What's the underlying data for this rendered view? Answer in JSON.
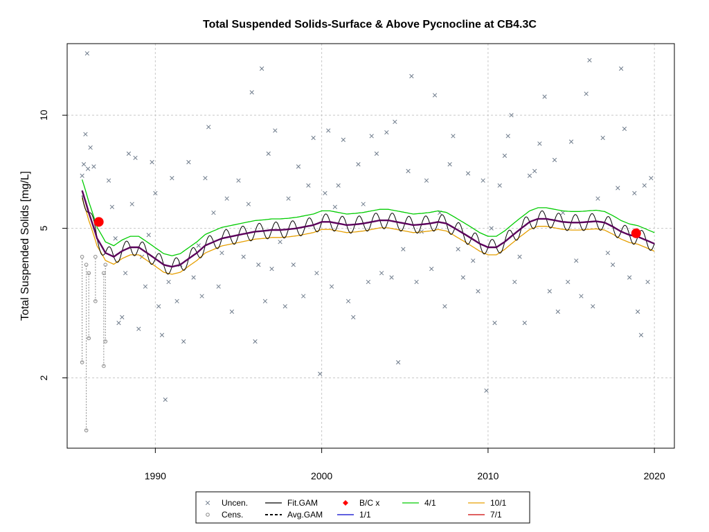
{
  "chart_data": {
    "type": "scatter",
    "title": "Total Suspended Solids-Surface & Above Pycnocline at CB4.3C",
    "xlabel": "",
    "ylabel": "Total Suspended Solids [mg/L]",
    "xlim": [
      1984.7,
      2021.2
    ],
    "ylim": [
      1.3,
      15.5
    ],
    "log_y": true,
    "grid": true,
    "x_ticks": [
      1990,
      2000,
      2010,
      2020
    ],
    "x_tick_labels": [
      "1990",
      "2000",
      "2010",
      "2020"
    ],
    "y_ticks": [
      2,
      5,
      10
    ],
    "y_tick_labels": [
      "2",
      "5",
      "10"
    ],
    "legend_position": "bottom",
    "legend": [
      {
        "key": "uncen",
        "label": "Uncen.",
        "symbol": "x",
        "color": "#6e7b8b"
      },
      {
        "key": "cens",
        "label": "Cens.",
        "symbol": "circle",
        "color": "#888888"
      },
      {
        "key": "fitgam",
        "label": "Fit.GAM",
        "symbol": "line",
        "color": "#000000"
      },
      {
        "key": "avggam",
        "label": "Avg.GAM",
        "symbol": "dashed-line",
        "color": "#000000"
      },
      {
        "key": "bc",
        "label": "B/C x",
        "symbol": "diamond",
        "color": "#ff0000"
      },
      {
        "key": "d11",
        "label": "1/1",
        "symbol": "line",
        "color": "#0000cc"
      },
      {
        "key": "d41",
        "label": "4/1",
        "symbol": "line",
        "color": "#00cc00"
      },
      {
        "key": "d71",
        "label": "7/1",
        "symbol": "line",
        "color": "#cc0000"
      },
      {
        "key": "d101",
        "label": "10/1",
        "symbol": "line",
        "color": "#e69f00"
      }
    ],
    "colors": {
      "uncen": "#6e7b8b",
      "cens": "#888888",
      "fit": "#000000",
      "d11": "#0000cc",
      "d41": "#00cc00",
      "d71": "#cc0000",
      "d101": "#e69f00",
      "avg": "#5a005a",
      "bc": "#ff0000",
      "grid": "#c8c8c8"
    },
    "avg_gam": {
      "x": [
        1985.6,
        1986.0,
        1986.5,
        1987.0,
        1987.5,
        1988.0,
        1988.5,
        1989.0,
        1989.5,
        1990.0,
        1990.5,
        1991.0,
        1991.5,
        1992.0,
        1992.5,
        1993.0,
        1993.5,
        1994.0,
        1994.5,
        1995.0,
        1995.5,
        1996.0,
        1996.5,
        1997.0,
        1997.5,
        1998.0,
        1998.5,
        1999.0,
        1999.5,
        2000.0,
        2000.5,
        2001.0,
        2001.5,
        2002.0,
        2002.5,
        2003.0,
        2003.5,
        2004.0,
        2004.5,
        2005.0,
        2005.5,
        2006.0,
        2006.5,
        2007.0,
        2007.5,
        2008.0,
        2008.5,
        2009.0,
        2009.5,
        2010.0,
        2010.5,
        2011.0,
        2011.5,
        2012.0,
        2012.5,
        2013.0,
        2013.5,
        2014.0,
        2014.5,
        2015.0,
        2015.5,
        2016.0,
        2016.5,
        2017.0,
        2017.5,
        2018.0,
        2018.5,
        2019.0,
        2019.5,
        2020.0
      ],
      "y": [
        6.3,
        5.5,
        4.7,
        4.3,
        4.2,
        4.35,
        4.45,
        4.45,
        4.3,
        4.15,
        4.0,
        3.95,
        4.0,
        4.15,
        4.3,
        4.5,
        4.6,
        4.7,
        4.75,
        4.8,
        4.85,
        4.9,
        4.92,
        4.95,
        4.95,
        4.97,
        5.0,
        5.05,
        5.1,
        5.2,
        5.2,
        5.15,
        5.1,
        5.12,
        5.15,
        5.2,
        5.25,
        5.25,
        5.2,
        5.15,
        5.1,
        5.12,
        5.15,
        5.2,
        5.15,
        5.0,
        4.85,
        4.7,
        4.55,
        4.45,
        4.45,
        4.6,
        4.8,
        5.0,
        5.2,
        5.3,
        5.3,
        5.25,
        5.2,
        5.18,
        5.18,
        5.2,
        5.22,
        5.18,
        5.05,
        4.9,
        4.8,
        4.75,
        4.65,
        4.55
      ]
    },
    "daily_offsets": {
      "d41": 1.07,
      "d11": 1.0,
      "d71": 1.0,
      "d101": 0.955
    },
    "fit_gam_seasonal_amplitude": 0.05,
    "bc_points": [
      {
        "x": 1986.6,
        "y": 5.2
      },
      {
        "x": 2018.9,
        "y": 4.85
      }
    ],
    "uncensored": [
      {
        "x": 1985.6,
        "y": 6.9
      },
      {
        "x": 1985.7,
        "y": 7.4
      },
      {
        "x": 1985.8,
        "y": 8.9
      },
      {
        "x": 1985.9,
        "y": 14.6
      },
      {
        "x": 1985.95,
        "y": 7.2
      },
      {
        "x": 1986.1,
        "y": 8.2
      },
      {
        "x": 1986.3,
        "y": 7.3
      },
      {
        "x": 1986.5,
        "y": 5.2
      },
      {
        "x": 1987.2,
        "y": 6.7
      },
      {
        "x": 1987.4,
        "y": 5.7
      },
      {
        "x": 1987.6,
        "y": 4.7
      },
      {
        "x": 1987.8,
        "y": 2.8
      },
      {
        "x": 1988.0,
        "y": 2.9
      },
      {
        "x": 1988.2,
        "y": 3.8
      },
      {
        "x": 1988.4,
        "y": 7.9
      },
      {
        "x": 1988.6,
        "y": 5.8
      },
      {
        "x": 1988.8,
        "y": 7.7
      },
      {
        "x": 1989.0,
        "y": 2.7
      },
      {
        "x": 1989.2,
        "y": 4.2
      },
      {
        "x": 1989.4,
        "y": 3.5
      },
      {
        "x": 1989.6,
        "y": 4.8
      },
      {
        "x": 1989.8,
        "y": 7.5
      },
      {
        "x": 1990.0,
        "y": 6.2
      },
      {
        "x": 1990.2,
        "y": 3.1
      },
      {
        "x": 1990.4,
        "y": 2.6
      },
      {
        "x": 1990.6,
        "y": 1.75
      },
      {
        "x": 1990.8,
        "y": 3.6
      },
      {
        "x": 1991.0,
        "y": 6.8
      },
      {
        "x": 1991.3,
        "y": 3.2
      },
      {
        "x": 1991.5,
        "y": 4.0
      },
      {
        "x": 1991.7,
        "y": 2.5
      },
      {
        "x": 1992.0,
        "y": 7.5
      },
      {
        "x": 1992.3,
        "y": 3.7
      },
      {
        "x": 1992.6,
        "y": 4.5
      },
      {
        "x": 1992.8,
        "y": 3.3
      },
      {
        "x": 1993.0,
        "y": 6.8
      },
      {
        "x": 1993.2,
        "y": 9.3
      },
      {
        "x": 1993.5,
        "y": 5.5
      },
      {
        "x": 1993.8,
        "y": 3.5
      },
      {
        "x": 1994.0,
        "y": 4.3
      },
      {
        "x": 1994.3,
        "y": 6.0
      },
      {
        "x": 1994.6,
        "y": 3.0
      },
      {
        "x": 1995.0,
        "y": 6.7
      },
      {
        "x": 1995.3,
        "y": 4.2
      },
      {
        "x": 1995.6,
        "y": 5.8
      },
      {
        "x": 1995.8,
        "y": 11.5
      },
      {
        "x": 1996.0,
        "y": 2.5
      },
      {
        "x": 1996.2,
        "y": 4.0
      },
      {
        "x": 1996.4,
        "y": 13.3
      },
      {
        "x": 1996.6,
        "y": 3.2
      },
      {
        "x": 1996.8,
        "y": 7.9
      },
      {
        "x": 1997.0,
        "y": 3.9
      },
      {
        "x": 1997.2,
        "y": 9.1
      },
      {
        "x": 1997.5,
        "y": 4.6
      },
      {
        "x": 1997.8,
        "y": 3.1
      },
      {
        "x": 1998.0,
        "y": 6.0
      },
      {
        "x": 1998.3,
        "y": 4.0
      },
      {
        "x": 1998.6,
        "y": 7.3
      },
      {
        "x": 1998.9,
        "y": 3.3
      },
      {
        "x": 1999.2,
        "y": 6.5
      },
      {
        "x": 1999.5,
        "y": 8.7
      },
      {
        "x": 1999.7,
        "y": 3.8
      },
      {
        "x": 1999.9,
        "y": 2.05
      },
      {
        "x": 2000.2,
        "y": 6.2
      },
      {
        "x": 2000.4,
        "y": 9.1
      },
      {
        "x": 2000.6,
        "y": 3.5
      },
      {
        "x": 2000.8,
        "y": 5.7
      },
      {
        "x": 2001.0,
        "y": 6.5
      },
      {
        "x": 2001.3,
        "y": 8.6
      },
      {
        "x": 2001.6,
        "y": 3.2
      },
      {
        "x": 2001.9,
        "y": 2.9
      },
      {
        "x": 2002.2,
        "y": 7.4
      },
      {
        "x": 2002.5,
        "y": 5.8
      },
      {
        "x": 2002.8,
        "y": 3.6
      },
      {
        "x": 2003.0,
        "y": 8.8
      },
      {
        "x": 2003.3,
        "y": 7.9
      },
      {
        "x": 2003.6,
        "y": 3.8
      },
      {
        "x": 2003.9,
        "y": 9.0
      },
      {
        "x": 2004.2,
        "y": 3.7
      },
      {
        "x": 2004.4,
        "y": 9.6
      },
      {
        "x": 2004.6,
        "y": 2.2
      },
      {
        "x": 2004.9,
        "y": 4.4
      },
      {
        "x": 2005.2,
        "y": 7.1
      },
      {
        "x": 2005.4,
        "y": 12.7
      },
      {
        "x": 2005.7,
        "y": 3.6
      },
      {
        "x": 2006.0,
        "y": 4.9
      },
      {
        "x": 2006.3,
        "y": 6.7
      },
      {
        "x": 2006.6,
        "y": 3.9
      },
      {
        "x": 2006.8,
        "y": 11.3
      },
      {
        "x": 2007.1,
        "y": 5.5
      },
      {
        "x": 2007.4,
        "y": 3.1
      },
      {
        "x": 2007.7,
        "y": 7.4
      },
      {
        "x": 2007.9,
        "y": 8.8
      },
      {
        "x": 2008.2,
        "y": 4.4
      },
      {
        "x": 2008.5,
        "y": 3.7
      },
      {
        "x": 2008.8,
        "y": 7.0
      },
      {
        "x": 2009.1,
        "y": 4.1
      },
      {
        "x": 2009.4,
        "y": 3.4
      },
      {
        "x": 2009.7,
        "y": 6.7
      },
      {
        "x": 2009.9,
        "y": 1.85
      },
      {
        "x": 2010.2,
        "y": 5.0
      },
      {
        "x": 2010.4,
        "y": 2.8
      },
      {
        "x": 2010.7,
        "y": 6.5
      },
      {
        "x": 2011.0,
        "y": 7.8
      },
      {
        "x": 2011.2,
        "y": 8.8
      },
      {
        "x": 2011.4,
        "y": 10.0
      },
      {
        "x": 2011.6,
        "y": 3.6
      },
      {
        "x": 2011.9,
        "y": 4.2
      },
      {
        "x": 2012.2,
        "y": 2.8
      },
      {
        "x": 2012.5,
        "y": 6.9
      },
      {
        "x": 2012.8,
        "y": 7.1
      },
      {
        "x": 2013.1,
        "y": 8.4
      },
      {
        "x": 2013.4,
        "y": 11.2
      },
      {
        "x": 2013.7,
        "y": 3.4
      },
      {
        "x": 2014.0,
        "y": 7.6
      },
      {
        "x": 2014.2,
        "y": 3.0
      },
      {
        "x": 2014.5,
        "y": 5.5
      },
      {
        "x": 2014.8,
        "y": 3.6
      },
      {
        "x": 2015.0,
        "y": 8.5
      },
      {
        "x": 2015.3,
        "y": 4.1
      },
      {
        "x": 2015.6,
        "y": 3.3
      },
      {
        "x": 2015.9,
        "y": 11.4
      },
      {
        "x": 2016.1,
        "y": 14.0
      },
      {
        "x": 2016.3,
        "y": 3.1
      },
      {
        "x": 2016.6,
        "y": 6.0
      },
      {
        "x": 2016.9,
        "y": 8.7
      },
      {
        "x": 2017.2,
        "y": 4.3
      },
      {
        "x": 2017.5,
        "y": 4.0
      },
      {
        "x": 2017.8,
        "y": 6.4
      },
      {
        "x": 2018.0,
        "y": 13.3
      },
      {
        "x": 2018.2,
        "y": 9.2
      },
      {
        "x": 2018.5,
        "y": 3.7
      },
      {
        "x": 2018.8,
        "y": 6.2
      },
      {
        "x": 2019.0,
        "y": 3.0
      },
      {
        "x": 2019.2,
        "y": 2.6
      },
      {
        "x": 2019.4,
        "y": 6.5
      },
      {
        "x": 2019.6,
        "y": 3.6
      },
      {
        "x": 2019.8,
        "y": 6.8
      }
    ],
    "censored": [
      {
        "x": 1985.6,
        "y": 4.2,
        "lower": 2.2
      },
      {
        "x": 1985.85,
        "y": 4.0,
        "lower": 1.45
      },
      {
        "x": 1986.0,
        "y": 3.8,
        "lower": 2.55
      },
      {
        "x": 1986.4,
        "y": 4.2,
        "lower": 3.2
      },
      {
        "x": 1986.9,
        "y": 3.8,
        "lower": 2.15
      },
      {
        "x": 1987.0,
        "y": 4.0,
        "lower": 2.5
      }
    ]
  }
}
